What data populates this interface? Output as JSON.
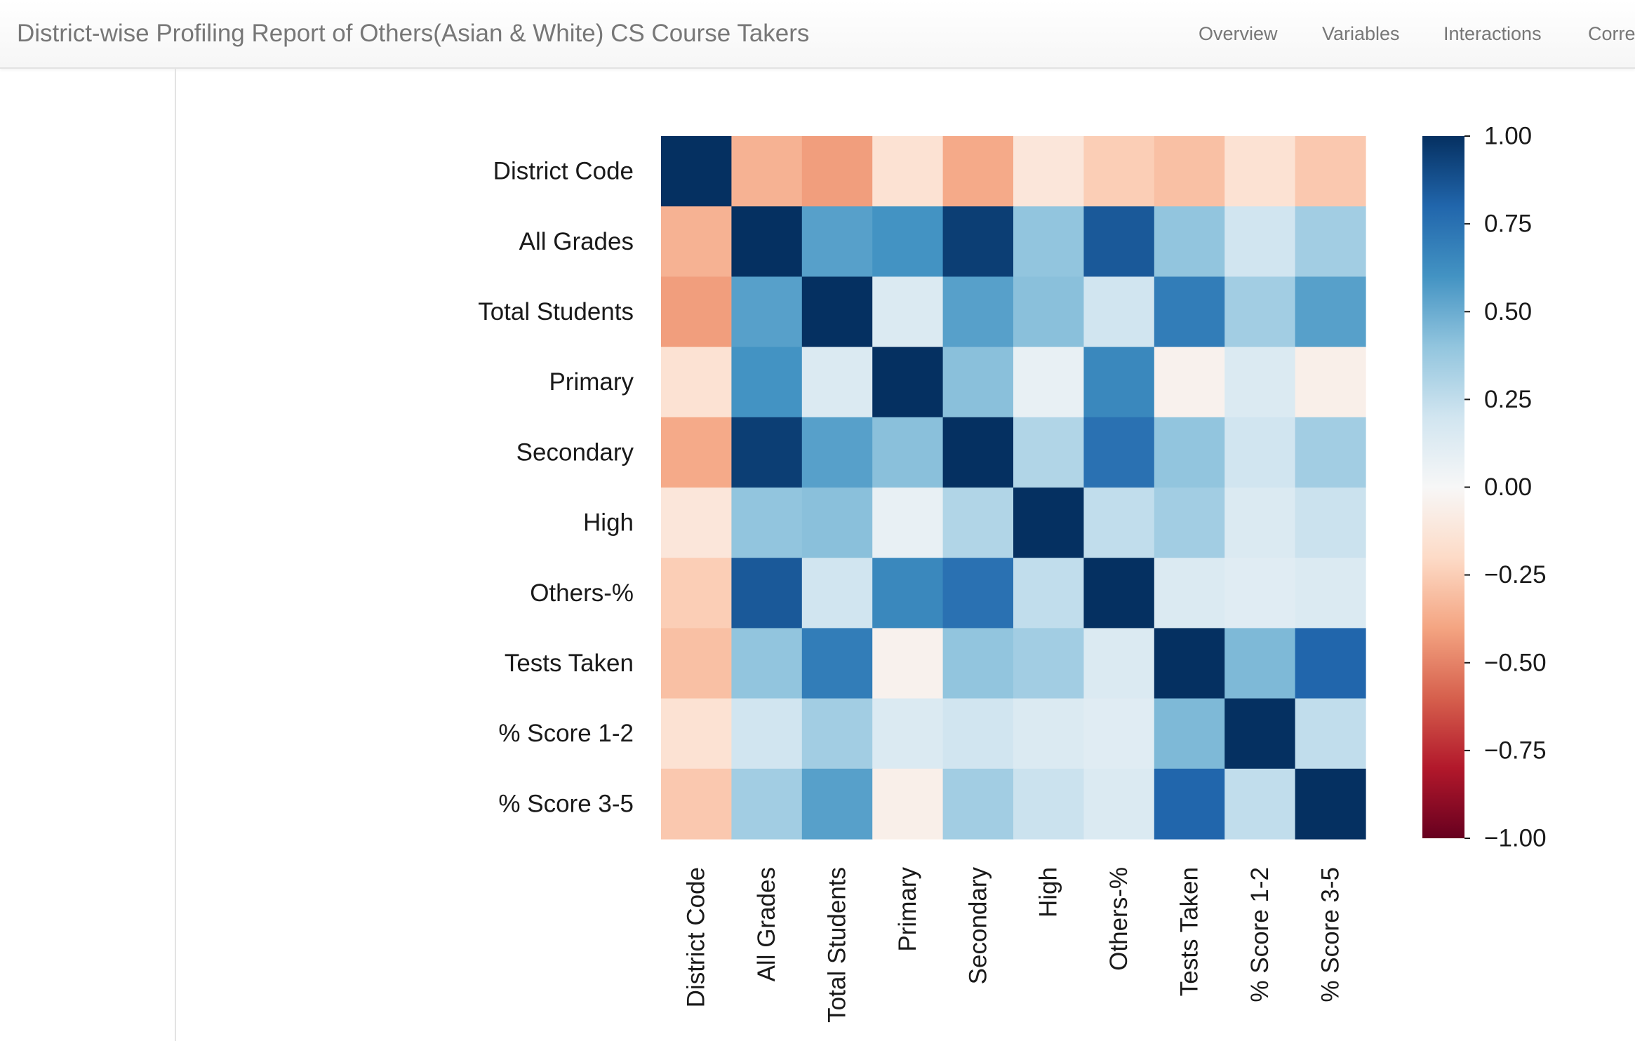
{
  "navbar": {
    "title": "District-wise Profiling Report of Others(Asian & White) CS Course Takers",
    "links": [
      "Overview",
      "Variables",
      "Interactions",
      "Correlations"
    ]
  },
  "chart_data": {
    "type": "heatmap",
    "title": "",
    "xlabel": "",
    "ylabel": "",
    "variables": [
      "District Code",
      "All Grades",
      "Total Students",
      "Primary",
      "Secondary",
      "High",
      "Others-%",
      "Tests Taken",
      "% Score 1-2",
      "% Score 3-5"
    ],
    "matrix": [
      [
        1.0,
        -0.35,
        -0.42,
        -0.15,
        -0.38,
        -0.12,
        -0.25,
        -0.3,
        -0.15,
        -0.27
      ],
      [
        -0.35,
        1.0,
        0.55,
        0.6,
        0.95,
        0.4,
        0.85,
        0.4,
        0.2,
        0.35
      ],
      [
        -0.42,
        0.55,
        1.0,
        0.15,
        0.55,
        0.42,
        0.2,
        0.7,
        0.35,
        0.55
      ],
      [
        -0.15,
        0.6,
        0.15,
        1.0,
        0.42,
        0.08,
        0.65,
        -0.04,
        0.15,
        -0.06
      ],
      [
        -0.38,
        0.95,
        0.55,
        0.42,
        1.0,
        0.3,
        0.75,
        0.4,
        0.2,
        0.35
      ],
      [
        -0.12,
        0.4,
        0.42,
        0.08,
        0.3,
        1.0,
        0.25,
        0.35,
        0.15,
        0.22
      ],
      [
        -0.25,
        0.85,
        0.2,
        0.65,
        0.75,
        0.25,
        1.0,
        0.15,
        0.12,
        0.15
      ],
      [
        -0.3,
        0.4,
        0.7,
        -0.04,
        0.4,
        0.35,
        0.15,
        1.0,
        0.45,
        0.8
      ],
      [
        -0.15,
        0.2,
        0.35,
        0.15,
        0.2,
        0.15,
        0.12,
        0.45,
        1.0,
        0.25
      ],
      [
        -0.27,
        0.35,
        0.55,
        -0.06,
        0.35,
        0.22,
        0.15,
        0.8,
        0.25,
        1.0
      ]
    ],
    "vmin": -1.0,
    "vmax": 1.0,
    "colormap": "RdBu",
    "colorbar": {
      "ticks": [
        1.0,
        0.75,
        0.5,
        0.25,
        0.0,
        -0.25,
        -0.5,
        -0.75,
        -1.0
      ],
      "tick_labels": [
        "1.00",
        "0.75",
        "0.50",
        "0.25",
        "0.00",
        "−0.25",
        "−0.50",
        "−0.75",
        "−1.00"
      ]
    },
    "grid": false,
    "legend": "colorbar-right"
  }
}
